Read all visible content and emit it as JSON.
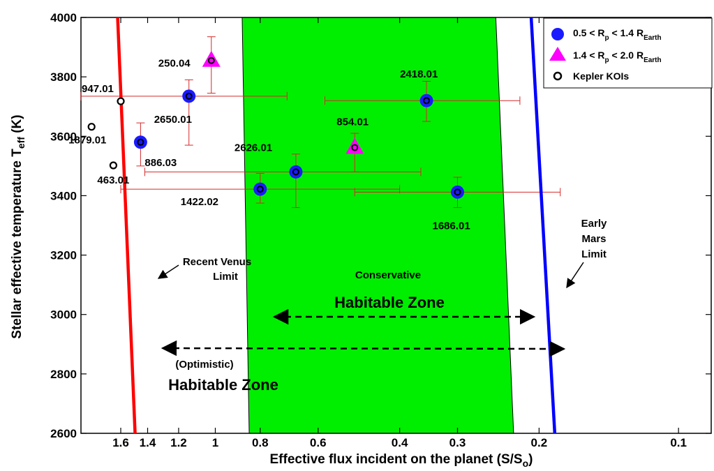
{
  "chart_data": {
    "type": "scatter",
    "title": "",
    "xlabel": "Effective flux incident on the planet (S/S",
    "xlabel_sub": "o",
    "xlabel_close": ")",
    "ylabel": "Stellar effective temperature T",
    "ylabel_sub": "eff",
    "ylabel_unit": " (K)",
    "x_scale": "log",
    "x_reversed": true,
    "xlim": [
      1.95,
      0.085
    ],
    "ylim": [
      2600,
      4000
    ],
    "x_ticks": [
      {
        "value": 1.6,
        "label": "1.6"
      },
      {
        "value": 1.4,
        "label": "1.4"
      },
      {
        "value": 1.2,
        "label": "1.2"
      },
      {
        "value": 1.0,
        "label": "1"
      },
      {
        "value": 0.8,
        "label": "0.8"
      },
      {
        "value": 0.6,
        "label": "0.6"
      },
      {
        "value": 0.4,
        "label": "0.4"
      },
      {
        "value": 0.3,
        "label": "0.3"
      },
      {
        "value": 0.2,
        "label": "0.2"
      },
      {
        "value": 0.1,
        "label": "0.1"
      }
    ],
    "y_ticks": [
      2600,
      2800,
      3000,
      3200,
      3400,
      3600,
      3800,
      4000
    ],
    "grid": false,
    "legend_position": "top-right",
    "legend": [
      {
        "marker": "circle",
        "color": "#1a1aff",
        "label_main": "0.5 < R",
        "sub1": "p",
        "label_mid": " < 1.4 R",
        "sub2": "Earth"
      },
      {
        "marker": "triangle",
        "color": "#ff00ff",
        "label_main": "1.4 < R",
        "sub1": "p",
        "label_mid": " < 2.0 R",
        "sub2": "Earth"
      },
      {
        "marker": "open-circle",
        "color": "#000000",
        "label_main": "Kepler KOIs",
        "sub1": "",
        "label_mid": "",
        "sub2": ""
      }
    ],
    "series": [
      {
        "name": "0.5 < Rp < 1.4 REarth",
        "marker": "circle",
        "points": [
          {
            "label": "2650.01",
            "x": 1.14,
            "y": 3735,
            "xerr": [
              1.95,
              0.7
            ],
            "yerr": [
              3570,
              3790
            ]
          },
          {
            "label": "886.03",
            "x": 1.45,
            "y": 3580,
            "yerr": [
              3500,
              3645
            ]
          },
          {
            "label": "2626.01",
            "x": 0.67,
            "y": 3480,
            "xerr": [
              1.42,
              0.36
            ],
            "yerr": [
              3360,
              3540
            ]
          },
          {
            "label": "1422.02",
            "x": 0.8,
            "y": 3422,
            "xerr": [
              1.6,
              0.4
            ],
            "yerr": [
              3375,
              3475
            ]
          },
          {
            "label": "2418.01",
            "x": 0.35,
            "y": 3720,
            "xerr": [
              0.58,
              0.22
            ],
            "yerr": [
              3650,
              3785
            ]
          },
          {
            "label": "1686.01",
            "x": 0.3,
            "y": 3412,
            "xerr": [
              0.5,
              0.18
            ],
            "yerr": [
              3360,
              3462
            ]
          }
        ]
      },
      {
        "name": "1.4 < Rp < 2.0 REarth",
        "marker": "triangle",
        "points": [
          {
            "label": "250.04",
            "x": 1.02,
            "y": 3855,
            "yerr": [
              3745,
              3935
            ]
          },
          {
            "label": "854.01",
            "x": 0.5,
            "y": 3562,
            "yerr": [
              3480,
              3610
            ]
          }
        ]
      },
      {
        "name": "Kepler KOIs",
        "marker": "open-circle",
        "points": [
          {
            "label": "947.01",
            "x": 1.6,
            "y": 3718
          },
          {
            "label": "1879.01",
            "x": 1.85,
            "y": 3632
          },
          {
            "label": "463.01",
            "x": 1.66,
            "y": 3502
          }
        ]
      }
    ],
    "boundaries": [
      {
        "name": "Recent Venus",
        "color": "#ff0000",
        "points": [
          [
            1.625,
            4000
          ],
          [
            1.49,
            2600
          ]
        ]
      },
      {
        "name": "Early Mars",
        "color": "#0000ff",
        "points": [
          [
            0.208,
            4000
          ],
          [
            0.185,
            2600
          ]
        ]
      }
    ],
    "conservative_zone": {
      "color": "#00ee00",
      "inner": [
        [
          0.875,
          4000
        ],
        [
          0.845,
          2600
        ]
      ],
      "outer": [
        [
          0.248,
          4000
        ],
        [
          0.227,
          2600
        ]
      ]
    },
    "annotations": {
      "venus_limit": [
        "Recent Venus",
        "Limit"
      ],
      "mars_limit": [
        "Early",
        "Mars",
        "Limit"
      ],
      "conservative": "Conservative",
      "habitable_zone": "Habitable Zone",
      "optimistic": "(Optimistic)",
      "optimistic_hz": "Habitable Zone"
    }
  }
}
